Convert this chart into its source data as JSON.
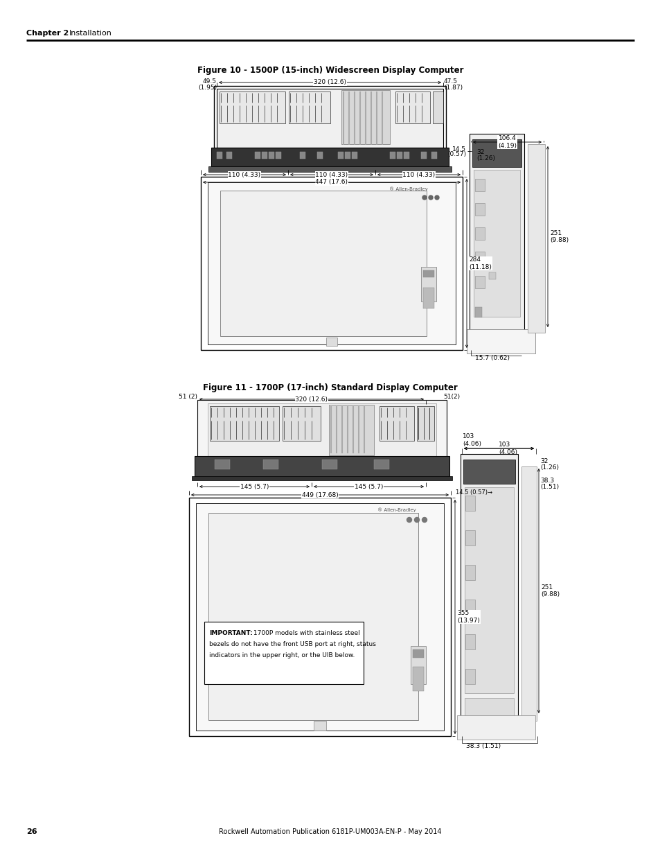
{
  "page_bg": "#ffffff",
  "page_width": 9.54,
  "page_height": 12.35,
  "dpi": 100,
  "header_bold": "Chapter 2",
  "header_normal": "Installation",
  "footer_page": "26",
  "footer_center": "Rockwell Automation Publication 6181P-UM003A-EN-P - May 2014",
  "fig10_title": "Figure 10 - 1500P (15-inch) Widescreen Display Computer",
  "fig11_title": "Figure 11 - 1700P (17-inch) Standard Display Computer",
  "important_bold": "IMPORTANT:",
  "important_rest": " 1700P models with stainless steel\nbezels do not have the front USB port at right, status\nindicators in the upper right, or the UIB below."
}
